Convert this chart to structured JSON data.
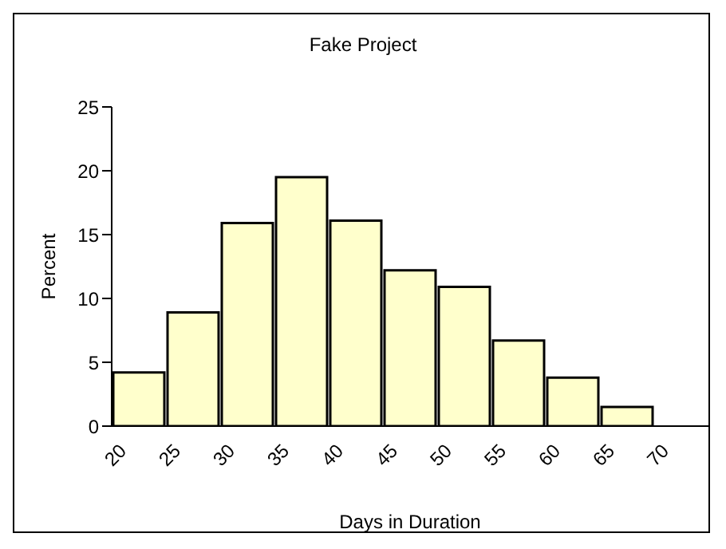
{
  "chart_data": {
    "type": "histogram",
    "title": "Fake Project",
    "xlabel": "Days in Duration",
    "ylabel": "Percent",
    "bins": [
      20,
      25,
      30,
      35,
      40,
      45,
      50,
      55,
      60,
      65,
      70
    ],
    "values": [
      4.2,
      8.9,
      15.9,
      19.5,
      16.1,
      12.2,
      10.9,
      6.7,
      3.8,
      1.5
    ],
    "color": "#ffffcc",
    "xlim": [
      20,
      75
    ],
    "xticks": [
      20,
      25,
      30,
      35,
      40,
      45,
      50,
      55,
      60,
      65,
      70
    ],
    "ylim": [
      0,
      25
    ],
    "yticks": [
      0,
      5,
      10,
      15,
      20,
      25
    ],
    "grid": false
  }
}
